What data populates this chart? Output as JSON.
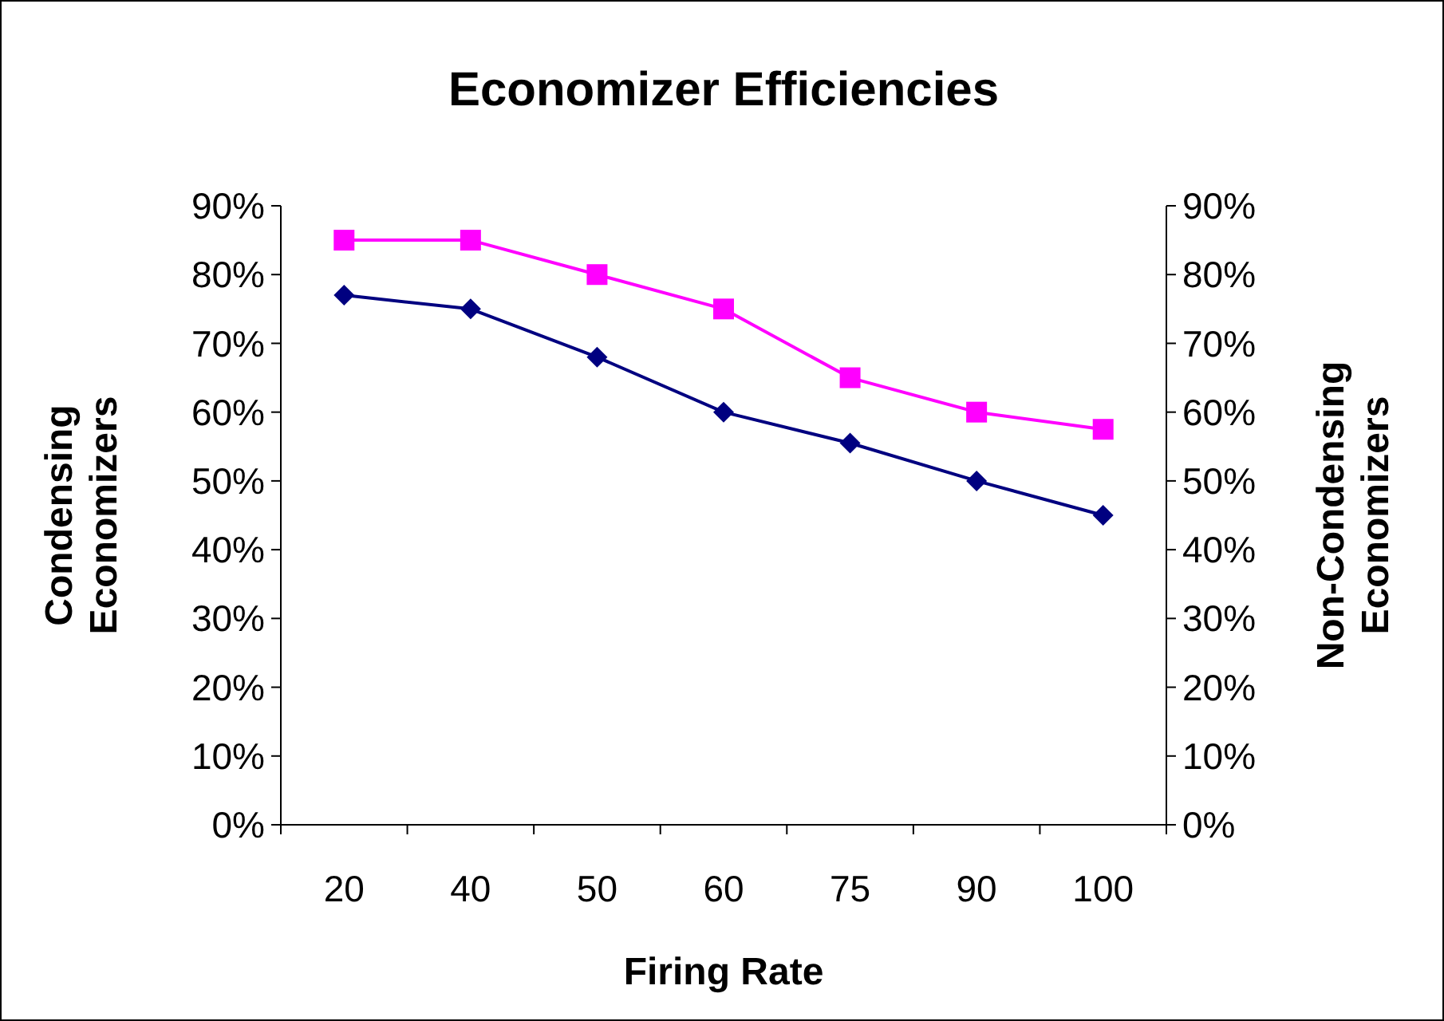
{
  "chart_data": {
    "type": "line",
    "title": "Economizer Efficiencies",
    "xlabel": "Firing Rate",
    "ylabel": "Condensing Economizers",
    "y2label": "Non-Condensing Economizers",
    "categories": [
      "20",
      "40",
      "50",
      "60",
      "75",
      "90",
      "100"
    ],
    "series": [
      {
        "color": "#ff00ff",
        "marker": "square",
        "values": [
          85,
          85,
          80,
          75,
          65,
          60,
          57.5
        ]
      },
      {
        "color": "#000080",
        "marker": "diamond",
        "values": [
          77,
          75,
          68,
          60,
          55.5,
          50,
          45
        ]
      }
    ],
    "ylim": [
      0,
      90
    ],
    "yticks": [
      {
        "value": 0,
        "label": "0%"
      },
      {
        "value": 10,
        "label": "10%"
      },
      {
        "value": 20,
        "label": "20%"
      },
      {
        "value": 30,
        "label": "30%"
      },
      {
        "value": 40,
        "label": "40%"
      },
      {
        "value": 50,
        "label": "50%"
      },
      {
        "value": 60,
        "label": "60%"
      },
      {
        "value": 70,
        "label": "70%"
      },
      {
        "value": 80,
        "label": "80%"
      },
      {
        "value": 90,
        "label": "90%"
      }
    ],
    "y2lim": [
      0,
      90
    ],
    "y2ticks": [
      {
        "value": 0,
        "label": "0%"
      },
      {
        "value": 10,
        "label": "10%"
      },
      {
        "value": 20,
        "label": "20%"
      },
      {
        "value": 30,
        "label": "30%"
      },
      {
        "value": 40,
        "label": "40%"
      },
      {
        "value": 50,
        "label": "50%"
      },
      {
        "value": 60,
        "label": "60%"
      },
      {
        "value": 70,
        "label": "70%"
      },
      {
        "value": 80,
        "label": "80%"
      },
      {
        "value": 90,
        "label": "90%"
      }
    ],
    "grid": false,
    "line_style": "solid"
  }
}
